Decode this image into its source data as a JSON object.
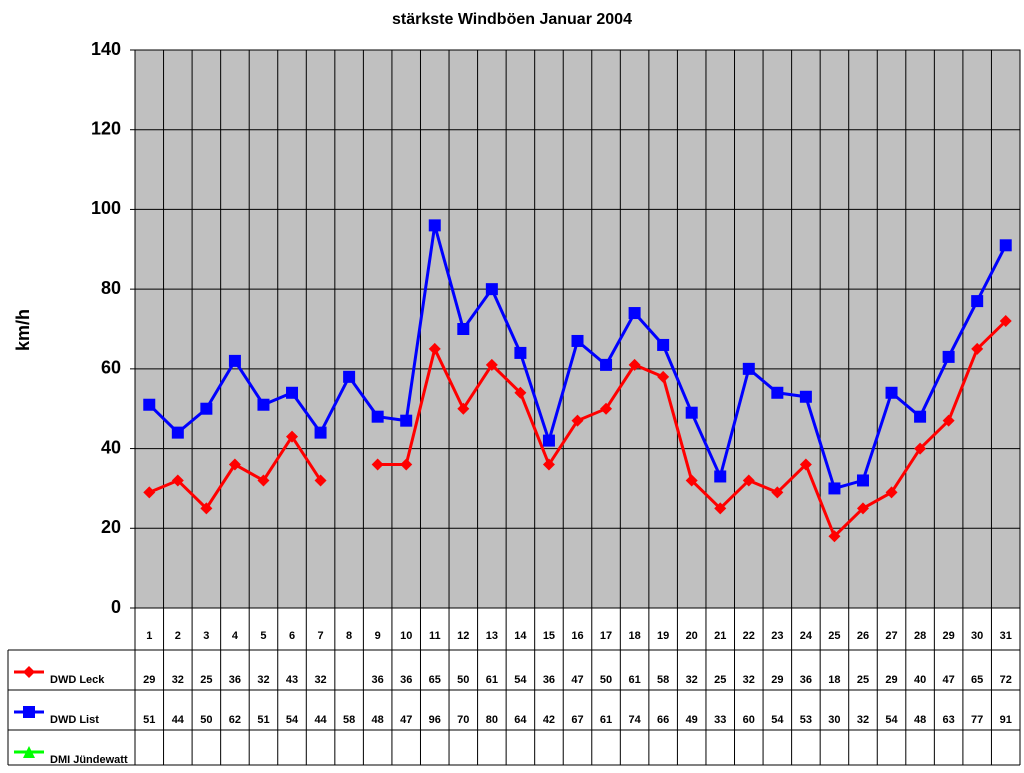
{
  "chart_data": {
    "type": "line",
    "title": "stärkste Windböen Januar 2004",
    "y_label": "km/h",
    "categories": [
      "1",
      "2",
      "3",
      "4",
      "5",
      "6",
      "7",
      "8",
      "9",
      "10",
      "11",
      "12",
      "13",
      "14",
      "15",
      "16",
      "17",
      "18",
      "19",
      "20",
      "21",
      "22",
      "23",
      "24",
      "25",
      "26",
      "27",
      "28",
      "29",
      "30",
      "31"
    ],
    "series": [
      {
        "name": "DWD Leck",
        "color": "#ff0000",
        "marker": "diamond",
        "values": [
          29,
          32,
          25,
          36,
          32,
          43,
          32,
          null,
          36,
          36,
          65,
          50,
          61,
          54,
          36,
          47,
          50,
          61,
          58,
          32,
          25,
          32,
          29,
          36,
          18,
          25,
          29,
          40,
          47,
          65,
          72
        ]
      },
      {
        "name": "DWD List",
        "color": "#0000ff",
        "marker": "square",
        "values": [
          51,
          44,
          50,
          62,
          51,
          54,
          44,
          58,
          48,
          47,
          96,
          70,
          80,
          64,
          42,
          67,
          61,
          74,
          66,
          49,
          33,
          60,
          54,
          53,
          30,
          32,
          54,
          48,
          63,
          77,
          91
        ]
      },
      {
        "name": "DMI Jündewatt",
        "color": "#00ff00",
        "marker": "triangle",
        "values": [
          null,
          null,
          null,
          null,
          null,
          null,
          null,
          null,
          null,
          null,
          null,
          null,
          null,
          null,
          null,
          null,
          null,
          null,
          null,
          null,
          null,
          null,
          null,
          null,
          null,
          null,
          null,
          null,
          null,
          null,
          null
        ]
      }
    ],
    "ylim": [
      0,
      140
    ],
    "yticks": [
      0,
      20,
      40,
      60,
      80,
      100,
      120,
      140
    ],
    "grid": true
  }
}
